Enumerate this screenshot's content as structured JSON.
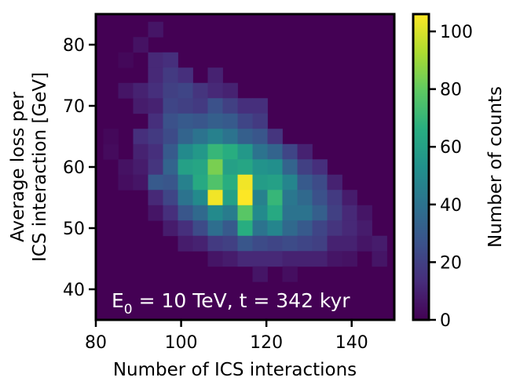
{
  "chart_data": {
    "type": "heatmap",
    "annotation": {
      "prefix": "E",
      "subscript": "0",
      "suffix": " = 10 TeV, t = 342 kyr"
    },
    "xlabel": "Number of ICS interactions",
    "ylabel_line1": "Average loss per",
    "ylabel_line2": "ICS interaction [GeV]",
    "xlim": [
      80,
      150
    ],
    "ylim": [
      35,
      85
    ],
    "x_ticks": [
      80,
      100,
      120,
      140
    ],
    "y_ticks": [
      40,
      50,
      60,
      70,
      80
    ],
    "x_bin_width": 3.5,
    "y_bin_width": 2.5,
    "colorbar": {
      "label": "Number of counts",
      "min": 0,
      "max": 106,
      "ticks": [
        0,
        20,
        40,
        60,
        80,
        100
      ]
    },
    "cells": [
      {
        "x": 83.5,
        "y": 62.5,
        "c": 3
      },
      {
        "x": 83.5,
        "y": 65,
        "c": 2
      },
      {
        "x": 87,
        "y": 77.5,
        "c": 2
      },
      {
        "x": 87,
        "y": 72.5,
        "c": 6
      },
      {
        "x": 87,
        "y": 60,
        "c": 5
      },
      {
        "x": 87,
        "y": 57.5,
        "c": 4
      },
      {
        "x": 90.5,
        "y": 80,
        "c": 5
      },
      {
        "x": 90.5,
        "y": 72.5,
        "c": 10
      },
      {
        "x": 90.5,
        "y": 70,
        "c": 8
      },
      {
        "x": 90.5,
        "y": 65,
        "c": 14
      },
      {
        "x": 90.5,
        "y": 62.5,
        "c": 10
      },
      {
        "x": 90.5,
        "y": 60,
        "c": 8
      },
      {
        "x": 90.5,
        "y": 57.5,
        "c": 6
      },
      {
        "x": 94,
        "y": 82.5,
        "c": 6
      },
      {
        "x": 94,
        "y": 77.5,
        "c": 12
      },
      {
        "x": 94,
        "y": 75,
        "c": 12
      },
      {
        "x": 94,
        "y": 72.5,
        "c": 14
      },
      {
        "x": 94,
        "y": 70,
        "c": 10
      },
      {
        "x": 94,
        "y": 67.5,
        "c": 14
      },
      {
        "x": 94,
        "y": 65,
        "c": 18
      },
      {
        "x": 94,
        "y": 62.5,
        "c": 14
      },
      {
        "x": 94,
        "y": 60,
        "c": 16
      },
      {
        "x": 94,
        "y": 57.5,
        "c": 30
      },
      {
        "x": 94,
        "y": 55,
        "c": 12
      },
      {
        "x": 94,
        "y": 52.5,
        "c": 6
      },
      {
        "x": 97.5,
        "y": 77.5,
        "c": 14
      },
      {
        "x": 97.5,
        "y": 75,
        "c": 18
      },
      {
        "x": 97.5,
        "y": 72.5,
        "c": 20
      },
      {
        "x": 97.5,
        "y": 70,
        "c": 22
      },
      {
        "x": 97.5,
        "y": 67.5,
        "c": 26
      },
      {
        "x": 97.5,
        "y": 65,
        "c": 24
      },
      {
        "x": 97.5,
        "y": 62.5,
        "c": 30
      },
      {
        "x": 97.5,
        "y": 60,
        "c": 34
      },
      {
        "x": 97.5,
        "y": 57.5,
        "c": 28
      },
      {
        "x": 97.5,
        "y": 55,
        "c": 22
      },
      {
        "x": 97.5,
        "y": 52.5,
        "c": 14
      },
      {
        "x": 97.5,
        "y": 50,
        "c": 8
      },
      {
        "x": 101,
        "y": 75,
        "c": 14
      },
      {
        "x": 101,
        "y": 72.5,
        "c": 22
      },
      {
        "x": 101,
        "y": 70,
        "c": 20
      },
      {
        "x": 101,
        "y": 67.5,
        "c": 30
      },
      {
        "x": 101,
        "y": 65,
        "c": 34
      },
      {
        "x": 101,
        "y": 62.5,
        "c": 50
      },
      {
        "x": 101,
        "y": 60,
        "c": 60
      },
      {
        "x": 101,
        "y": 57.5,
        "c": 46
      },
      {
        "x": 101,
        "y": 55,
        "c": 40
      },
      {
        "x": 101,
        "y": 52.5,
        "c": 28
      },
      {
        "x": 101,
        "y": 50,
        "c": 14
      },
      {
        "x": 101,
        "y": 47.5,
        "c": 8
      },
      {
        "x": 104.5,
        "y": 72.5,
        "c": 16
      },
      {
        "x": 104.5,
        "y": 70,
        "c": 18
      },
      {
        "x": 104.5,
        "y": 67.5,
        "c": 28
      },
      {
        "x": 104.5,
        "y": 65,
        "c": 40
      },
      {
        "x": 104.5,
        "y": 62.5,
        "c": 56
      },
      {
        "x": 104.5,
        "y": 60,
        "c": 62
      },
      {
        "x": 104.5,
        "y": 57.5,
        "c": 64
      },
      {
        "x": 104.5,
        "y": 55,
        "c": 50
      },
      {
        "x": 104.5,
        "y": 52.5,
        "c": 36
      },
      {
        "x": 104.5,
        "y": 50,
        "c": 24
      },
      {
        "x": 104.5,
        "y": 47.5,
        "c": 10
      },
      {
        "x": 108,
        "y": 75,
        "c": 10
      },
      {
        "x": 108,
        "y": 72.5,
        "c": 12
      },
      {
        "x": 108,
        "y": 70,
        "c": 26
      },
      {
        "x": 108,
        "y": 67.5,
        "c": 32
      },
      {
        "x": 108,
        "y": 65,
        "c": 46
      },
      {
        "x": 108,
        "y": 62.5,
        "c": 70
      },
      {
        "x": 108,
        "y": 60,
        "c": 84
      },
      {
        "x": 108,
        "y": 57.5,
        "c": 76
      },
      {
        "x": 108,
        "y": 55,
        "c": 104
      },
      {
        "x": 108,
        "y": 52.5,
        "c": 50
      },
      {
        "x": 108,
        "y": 50,
        "c": 38
      },
      {
        "x": 108,
        "y": 47.5,
        "c": 18
      },
      {
        "x": 108,
        "y": 45,
        "c": 6
      },
      {
        "x": 111.5,
        "y": 72.5,
        "c": 10
      },
      {
        "x": 111.5,
        "y": 70,
        "c": 20
      },
      {
        "x": 111.5,
        "y": 67.5,
        "c": 30
      },
      {
        "x": 111.5,
        "y": 65,
        "c": 40
      },
      {
        "x": 111.5,
        "y": 62.5,
        "c": 66
      },
      {
        "x": 111.5,
        "y": 60,
        "c": 60
      },
      {
        "x": 111.5,
        "y": 57.5,
        "c": 66
      },
      {
        "x": 111.5,
        "y": 55,
        "c": 60
      },
      {
        "x": 111.5,
        "y": 52.5,
        "c": 44
      },
      {
        "x": 111.5,
        "y": 50,
        "c": 30
      },
      {
        "x": 111.5,
        "y": 47.5,
        "c": 20
      },
      {
        "x": 111.5,
        "y": 45,
        "c": 8
      },
      {
        "x": 115,
        "y": 70,
        "c": 14
      },
      {
        "x": 115,
        "y": 67.5,
        "c": 22
      },
      {
        "x": 115,
        "y": 65,
        "c": 32
      },
      {
        "x": 115,
        "y": 62.5,
        "c": 56
      },
      {
        "x": 115,
        "y": 60,
        "c": 62
      },
      {
        "x": 115,
        "y": 57.5,
        "c": 104
      },
      {
        "x": 115,
        "y": 55,
        "c": 106
      },
      {
        "x": 115,
        "y": 52.5,
        "c": 78
      },
      {
        "x": 115,
        "y": 50,
        "c": 66
      },
      {
        "x": 115,
        "y": 47.5,
        "c": 28
      },
      {
        "x": 115,
        "y": 45,
        "c": 12
      },
      {
        "x": 118.5,
        "y": 70,
        "c": 14
      },
      {
        "x": 118.5,
        "y": 67.5,
        "c": 18
      },
      {
        "x": 118.5,
        "y": 65,
        "c": 28
      },
      {
        "x": 118.5,
        "y": 62.5,
        "c": 40
      },
      {
        "x": 118.5,
        "y": 60,
        "c": 54
      },
      {
        "x": 118.5,
        "y": 57.5,
        "c": 58
      },
      {
        "x": 118.5,
        "y": 55,
        "c": 46
      },
      {
        "x": 118.5,
        "y": 52.5,
        "c": 50
      },
      {
        "x": 118.5,
        "y": 50,
        "c": 40
      },
      {
        "x": 118.5,
        "y": 47.5,
        "c": 24
      },
      {
        "x": 118.5,
        "y": 45,
        "c": 12
      },
      {
        "x": 118.5,
        "y": 42.5,
        "c": 6
      },
      {
        "x": 122,
        "y": 65,
        "c": 16
      },
      {
        "x": 122,
        "y": 62.5,
        "c": 34
      },
      {
        "x": 122,
        "y": 60,
        "c": 52
      },
      {
        "x": 122,
        "y": 57.5,
        "c": 60
      },
      {
        "x": 122,
        "y": 55,
        "c": 70
      },
      {
        "x": 122,
        "y": 52.5,
        "c": 64
      },
      {
        "x": 122,
        "y": 50,
        "c": 48
      },
      {
        "x": 122,
        "y": 47.5,
        "c": 22
      },
      {
        "x": 122,
        "y": 45,
        "c": 12
      },
      {
        "x": 125.5,
        "y": 62.5,
        "c": 22
      },
      {
        "x": 125.5,
        "y": 60,
        "c": 34
      },
      {
        "x": 125.5,
        "y": 57.5,
        "c": 48
      },
      {
        "x": 125.5,
        "y": 55,
        "c": 42
      },
      {
        "x": 125.5,
        "y": 52.5,
        "c": 40
      },
      {
        "x": 125.5,
        "y": 50,
        "c": 36
      },
      {
        "x": 125.5,
        "y": 47.5,
        "c": 24
      },
      {
        "x": 125.5,
        "y": 45,
        "c": 10
      },
      {
        "x": 125.5,
        "y": 42.5,
        "c": 4
      },
      {
        "x": 129,
        "y": 62.5,
        "c": 10
      },
      {
        "x": 129,
        "y": 60,
        "c": 20
      },
      {
        "x": 129,
        "y": 57.5,
        "c": 30
      },
      {
        "x": 129,
        "y": 55,
        "c": 36
      },
      {
        "x": 129,
        "y": 52.5,
        "c": 40
      },
      {
        "x": 129,
        "y": 50,
        "c": 30
      },
      {
        "x": 129,
        "y": 47.5,
        "c": 22
      },
      {
        "x": 129,
        "y": 45,
        "c": 10
      },
      {
        "x": 132.5,
        "y": 60,
        "c": 14
      },
      {
        "x": 132.5,
        "y": 57.5,
        "c": 24
      },
      {
        "x": 132.5,
        "y": 55,
        "c": 26
      },
      {
        "x": 132.5,
        "y": 52.5,
        "c": 32
      },
      {
        "x": 132.5,
        "y": 50,
        "c": 22
      },
      {
        "x": 132.5,
        "y": 47.5,
        "c": 20
      },
      {
        "x": 132.5,
        "y": 45,
        "c": 10
      },
      {
        "x": 136,
        "y": 57.5,
        "c": 10
      },
      {
        "x": 136,
        "y": 55,
        "c": 18
      },
      {
        "x": 136,
        "y": 52.5,
        "c": 20
      },
      {
        "x": 136,
        "y": 50,
        "c": 16
      },
      {
        "x": 136,
        "y": 47.5,
        "c": 10
      },
      {
        "x": 136,
        "y": 45,
        "c": 6
      },
      {
        "x": 139.5,
        "y": 55,
        "c": 8
      },
      {
        "x": 139.5,
        "y": 52.5,
        "c": 12
      },
      {
        "x": 139.5,
        "y": 50,
        "c": 12
      },
      {
        "x": 139.5,
        "y": 47.5,
        "c": 10
      },
      {
        "x": 139.5,
        "y": 45,
        "c": 5
      },
      {
        "x": 143,
        "y": 52.5,
        "c": 6
      },
      {
        "x": 143,
        "y": 50,
        "c": 8
      },
      {
        "x": 143,
        "y": 47.5,
        "c": 6
      },
      {
        "x": 146.5,
        "y": 47.5,
        "c": 8
      },
      {
        "x": 146.5,
        "y": 45,
        "c": 6
      }
    ]
  }
}
